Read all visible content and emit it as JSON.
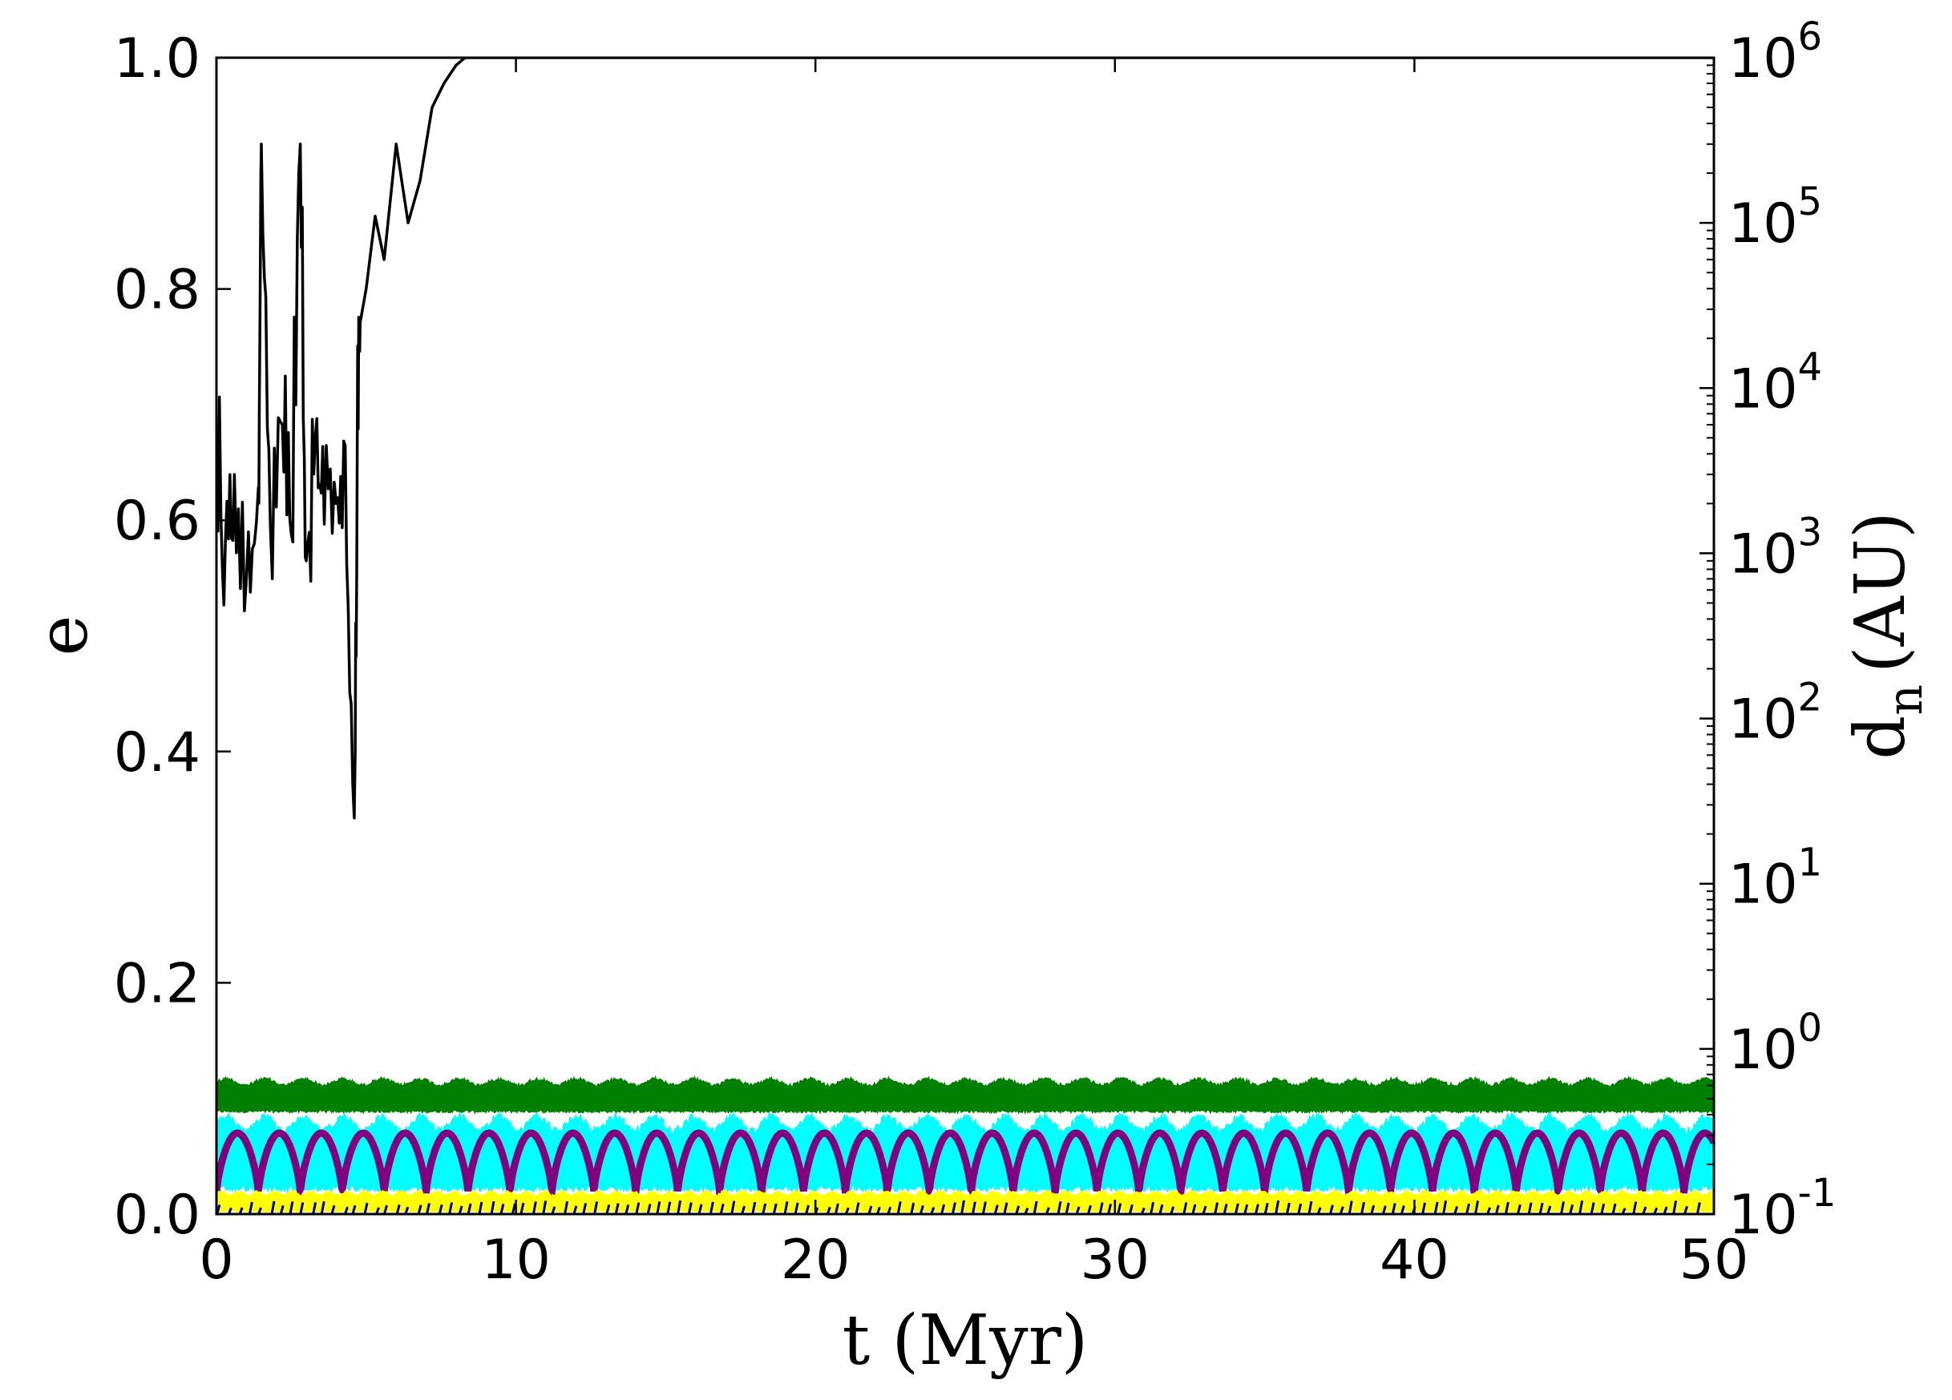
{
  "chart_data": {
    "type": "line",
    "xlabel": "t (Myr)",
    "ylabel": "e",
    "y2label_main": "d",
    "y2label_sub": "n",
    "y2label_unit": "(AU)",
    "xlim": [
      0,
      50
    ],
    "ylim": [
      0,
      1.0
    ],
    "y2lim": [
      0.1,
      1000000
    ],
    "y2scale": "log",
    "grid": false,
    "legend": "none",
    "xticks": [
      "0",
      "10",
      "20",
      "30",
      "40",
      "50"
    ],
    "yticks": [
      "0.0",
      "0.2",
      "0.4",
      "0.6",
      "0.8",
      "1.0"
    ],
    "y2ticks": [
      {
        "base": "10",
        "exp": "-1"
      },
      {
        "base": "10",
        "exp": "0"
      },
      {
        "base": "10",
        "exp": "1"
      },
      {
        "base": "10",
        "exp": "2"
      },
      {
        "base": "10",
        "exp": "3"
      },
      {
        "base": "10",
        "exp": "4"
      },
      {
        "base": "10",
        "exp": "5"
      },
      {
        "base": "10",
        "exp": "6"
      }
    ],
    "series": [
      {
        "axis": "right-log",
        "color": "#000000",
        "style": "solid-line",
        "x": [
          0,
          0.3,
          0.6,
          1.0,
          1.4,
          1.5,
          1.8,
          2.2,
          2.5,
          2.8,
          3.0,
          3.3,
          3.6,
          4.0,
          4.3,
          4.6,
          4.7,
          4.8,
          5.0,
          5.3,
          5.6,
          6.0,
          6.4,
          6.8,
          7.2,
          7.6,
          8.0,
          8.3,
          50
        ],
        "y": [
          4000,
          1200,
          3000,
          700,
          2500,
          300000,
          1500,
          6000,
          1300,
          300000,
          900,
          5000,
          1500,
          2000,
          4500,
          25,
          4000,
          25000,
          40000,
          110000,
          60000,
          300000,
          100000,
          180000,
          500000,
          700000,
          900000,
          1000000,
          1000000
        ]
      },
      {
        "axis": "left",
        "color": "#008000",
        "style": "dense-band",
        "low": 0.088,
        "high": 0.118,
        "period": 1.3
      },
      {
        "axis": "left",
        "color": "#00ffff",
        "style": "dense-band",
        "low": 0.02,
        "high": 0.087,
        "period": 1.3
      },
      {
        "axis": "left",
        "color": "#800080",
        "style": "arches",
        "low": 0.018,
        "high": 0.07,
        "period": 1.4
      },
      {
        "axis": "left",
        "color": "#ffff00",
        "style": "dense-band",
        "low": 0.002,
        "high": 0.02,
        "period": 0.6
      },
      {
        "axis": "left",
        "color": "#00008b",
        "style": "sparse-spikes",
        "low": 0.0,
        "high": 0.012,
        "period": 0.35
      }
    ]
  }
}
